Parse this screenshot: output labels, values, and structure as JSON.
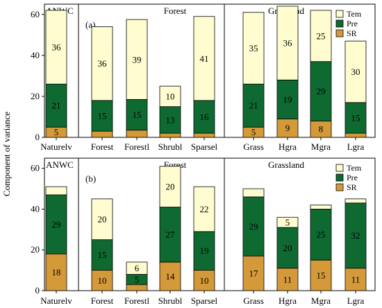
{
  "colors": {
    "Tem": "#fffdd0",
    "Pre": "#0f6a32",
    "SR": "#d49a3a"
  },
  "chart_data": [
    {
      "type": "bar",
      "stacked": true,
      "panel": "(a)",
      "ylabel": "Component of variance",
      "ylim": [
        0,
        65
      ],
      "yticks": [
        0,
        20,
        40,
        60
      ],
      "categories": [
        "Naturelv",
        "Forest",
        "Forestl",
        "Shrubl",
        "Sparsel",
        "Grass",
        "Hgra",
        "Mgra",
        "Lgra"
      ],
      "groups": [
        {
          "label": "ANWC",
          "members": [
            "Naturelv"
          ]
        },
        {
          "label": "Forest",
          "members": [
            "Forest",
            "Forestl",
            "Shrubl",
            "Sparsel"
          ]
        },
        {
          "label": "Grassland",
          "members": [
            "Grass",
            "Hgra",
            "Mgra",
            "Lgra"
          ]
        }
      ],
      "legend": {
        "position": "top-right",
        "entries": [
          "Tem",
          "Pre",
          "SR"
        ]
      },
      "series": [
        {
          "name": "SR",
          "values": [
            5,
            3,
            3.5,
            2,
            2,
            5,
            9,
            8,
            2
          ],
          "labels": [
            "5",
            "",
            "",
            "",
            "",
            "5",
            "9",
            "8",
            ""
          ]
        },
        {
          "name": "Pre",
          "values": [
            21,
            15,
            15,
            13,
            16,
            21,
            19,
            29,
            15
          ],
          "labels": [
            "21",
            "15",
            "15",
            "13",
            "16",
            "21",
            "19",
            "29",
            "15"
          ]
        },
        {
          "name": "Tem",
          "values": [
            36,
            36,
            39,
            10,
            41,
            35,
            36,
            25,
            30
          ],
          "labels": [
            "36",
            "36",
            "39",
            "10",
            "41",
            "35",
            "36",
            "25",
            "30"
          ]
        }
      ]
    },
    {
      "type": "bar",
      "stacked": true,
      "panel": "(b)",
      "ylabel": "Component of variance",
      "ylim": [
        0,
        65
      ],
      "yticks": [
        0,
        20,
        40,
        60
      ],
      "categories": [
        "Naturelv",
        "Forest",
        "Forestl",
        "Shrubl",
        "Sparsel",
        "Grass",
        "Hgra",
        "Mgra",
        "Lgra"
      ],
      "groups": [
        {
          "label": "ANWC",
          "members": [
            "Naturelv"
          ]
        },
        {
          "label": "Forest",
          "members": [
            "Forest",
            "Forestl",
            "Shrubl",
            "Sparsel"
          ]
        },
        {
          "label": "Grassland",
          "members": [
            "Grass",
            "Hgra",
            "Mgra",
            "Lgra"
          ]
        }
      ],
      "legend": {
        "position": "top-right",
        "entries": [
          "Tem",
          "Pre",
          "SR"
        ]
      },
      "series": [
        {
          "name": "SR",
          "values": [
            18,
            10,
            3,
            14,
            10,
            17,
            11,
            15,
            11
          ],
          "labels": [
            "18",
            "10",
            "",
            "14",
            "10",
            "17",
            "11",
            "15",
            "11"
          ]
        },
        {
          "name": "Pre",
          "values": [
            29,
            15,
            5,
            27,
            19,
            29,
            20,
            25,
            32
          ],
          "labels": [
            "29",
            "15",
            "5",
            "27",
            "19",
            "29",
            "20",
            "25",
            "32"
          ]
        },
        {
          "name": "Tem",
          "values": [
            4,
            20,
            6,
            20,
            22,
            4,
            5,
            2,
            2
          ],
          "labels": [
            "",
            "20",
            "6",
            "20",
            "22",
            "",
            "5",
            "",
            ""
          ]
        }
      ]
    }
  ]
}
